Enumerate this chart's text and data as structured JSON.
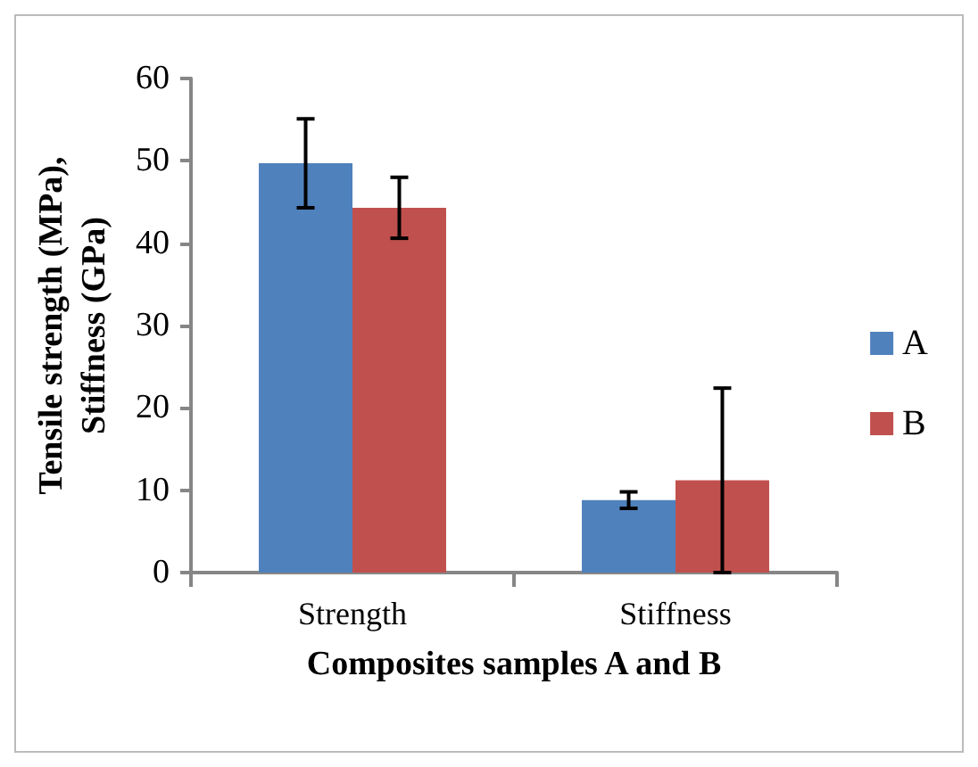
{
  "chart_data": {
    "type": "bar",
    "xlabel": "Composites samples A and B",
    "ylabel": "Tensile strength (MPa), Stiffness (GPa)",
    "categories": [
      "Strength",
      "Stiffness"
    ],
    "series": [
      {
        "name": "A",
        "color": "#4f81bd",
        "values": [
          49.7,
          8.8
        ],
        "errors": [
          5.4,
          1
        ]
      },
      {
        "name": "B",
        "color": "#c0504d",
        "values": [
          44.3,
          11.2
        ],
        "errors": [
          3.7,
          11.2
        ]
      }
    ],
    "ylim": [
      0,
      60
    ],
    "yticks": [
      0,
      10,
      20,
      30,
      40,
      50,
      60
    ],
    "grid": false,
    "legend": "right"
  }
}
